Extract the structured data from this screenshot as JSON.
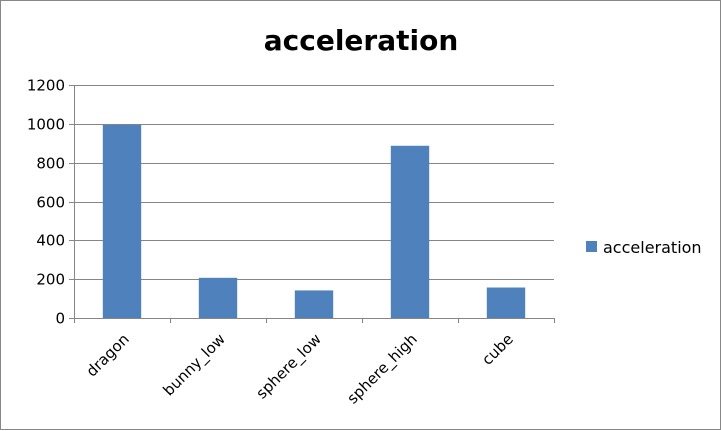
{
  "chart_data": {
    "type": "bar",
    "title": "acceleration",
    "categories": [
      "dragon",
      "bunny_low",
      "sphere_low",
      "sphere_high",
      "cube"
    ],
    "series": [
      {
        "name": "acceleration",
        "values": [
          995,
          207,
          142,
          887,
          157
        ],
        "color": "#4f81bd"
      }
    ],
    "ylim": [
      0,
      1200
    ],
    "yticks": [
      0,
      200,
      400,
      600,
      800,
      1000,
      1200
    ],
    "xlabel": "",
    "ylabel": "",
    "grid": true,
    "legend": "right"
  }
}
